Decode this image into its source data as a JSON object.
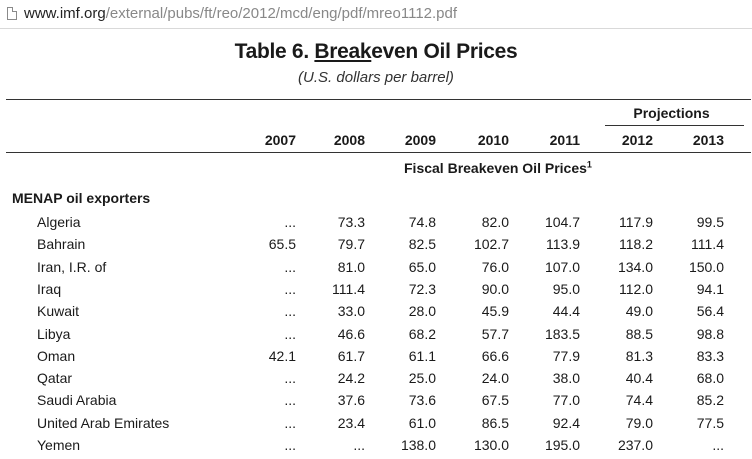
{
  "browser": {
    "url_domain": "www.imf.org",
    "url_path": "/external/pubs/ft/reo/2012/mcd/eng/pdf/mreo1112.pdf"
  },
  "table": {
    "title_prefix": "Table 6.",
    "title_underlined": "Break",
    "title_rest": "even Oil Prices",
    "subtitle": "(U.S. dollars per barrel)",
    "projections_label": "Projections",
    "years": [
      "2007",
      "2008",
      "2009",
      "2010",
      "2011",
      "2012",
      "2013"
    ],
    "section_label": "Fiscal Breakeven Oil Prices",
    "section_footnote": "1",
    "group_label": "MENAP oil exporters",
    "rows": [
      {
        "country": "Algeria",
        "values": [
          "...",
          "73.3",
          "74.8",
          "82.0",
          "104.7",
          "117.9",
          "99.5"
        ]
      },
      {
        "country": "Bahrain",
        "values": [
          "65.5",
          "79.7",
          "82.5",
          "102.7",
          "113.9",
          "118.2",
          "111.4"
        ]
      },
      {
        "country": "Iran, I.R. of",
        "values": [
          "...",
          "81.0",
          "65.0",
          "76.0",
          "107.0",
          "134.0",
          "150.0"
        ]
      },
      {
        "country": "Iraq",
        "values": [
          "...",
          "111.4",
          "72.3",
          "90.0",
          "95.0",
          "112.0",
          "94.1"
        ]
      },
      {
        "country": "Kuwait",
        "values": [
          "...",
          "33.0",
          "28.0",
          "45.9",
          "44.4",
          "49.0",
          "56.4"
        ]
      },
      {
        "country": "Libya",
        "values": [
          "...",
          "46.6",
          "68.2",
          "57.7",
          "183.5",
          "88.5",
          "98.8"
        ]
      },
      {
        "country": "Oman",
        "values": [
          "42.1",
          "61.7",
          "61.1",
          "66.6",
          "77.9",
          "81.3",
          "83.3"
        ]
      },
      {
        "country": "Qatar",
        "values": [
          "...",
          "24.2",
          "25.0",
          "24.0",
          "38.0",
          "40.4",
          "68.0"
        ]
      },
      {
        "country": "Saudi Arabia",
        "values": [
          "...",
          "37.6",
          "73.6",
          "67.5",
          "77.0",
          "74.4",
          "85.2"
        ]
      },
      {
        "country": "United Arab Emirates",
        "values": [
          "...",
          "23.4",
          "61.0",
          "86.5",
          "92.4",
          "79.0",
          "77.5"
        ]
      },
      {
        "country": "Yemen",
        "values": [
          "...",
          "...",
          "138.0",
          "130.0",
          "195.0",
          "237.0",
          "..."
        ]
      }
    ]
  }
}
